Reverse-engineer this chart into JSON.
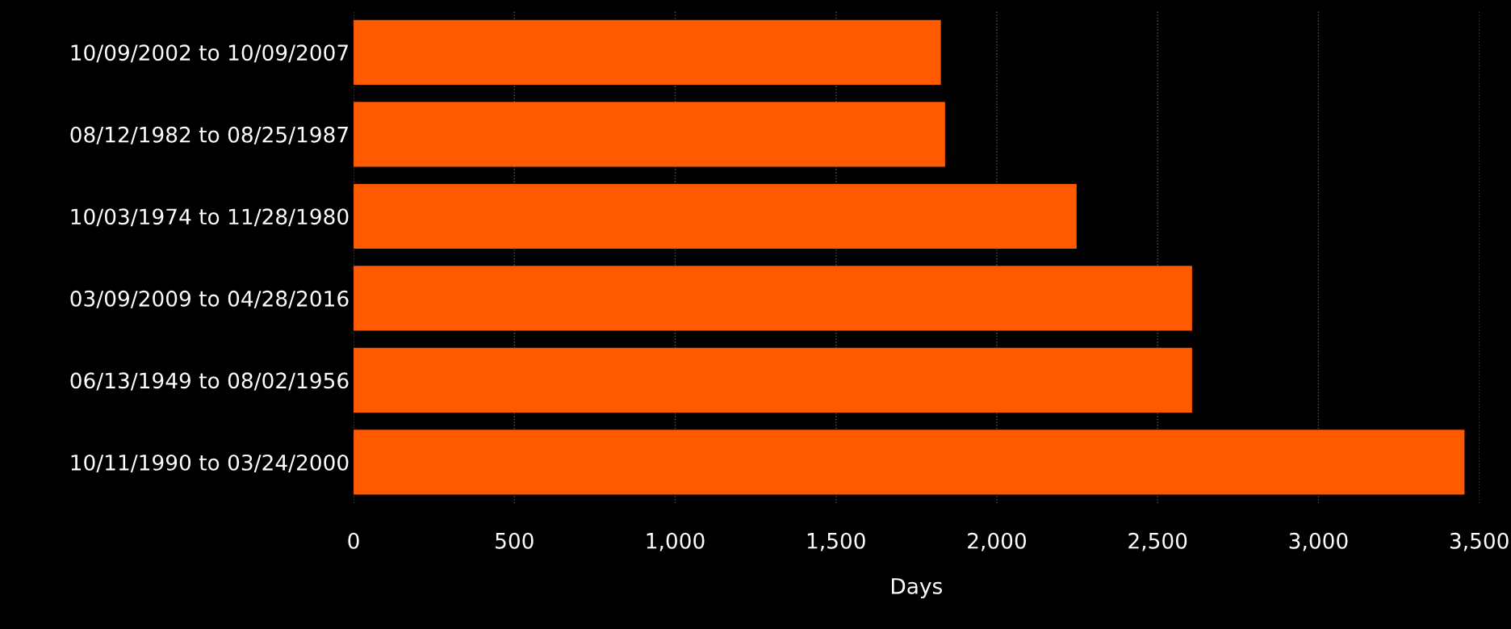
{
  "chart_data": {
    "type": "bar",
    "orientation": "horizontal",
    "xlabel": "Days",
    "categories": [
      "10/09/2002 to 10/09/2007",
      "08/12/1982 to 08/25/1987",
      "10/03/1974 to 11/28/1980",
      "03/09/2009 to 04/28/2016",
      "06/13/1949 to 08/02/1956",
      "10/11/1990 to 03/24/2000"
    ],
    "values": [
      1826,
      1839,
      2248,
      2607,
      2607,
      3454
    ],
    "color": "#ff5a00",
    "xlim": [
      0,
      3500
    ],
    "xticks": [
      0,
      500,
      {
        "value": 1000,
        "label": "1,000"
      },
      {
        "value": 1500,
        "label": "1,500"
      },
      {
        "value": 2000,
        "label": "2,000"
      },
      {
        "value": 2500,
        "label": "2,500"
      },
      {
        "value": 3000,
        "label": "3,000"
      },
      {
        "value": 3500,
        "label": "3,500"
      }
    ],
    "grid": "x",
    "legend": false
  }
}
